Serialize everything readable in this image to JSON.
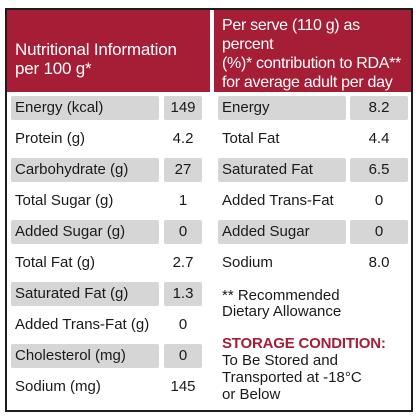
{
  "left_header": {
    "line1": "Nutritional Information",
    "line2": "per 100 g*"
  },
  "right_header": {
    "line1": "Per serve (110 g) as percent",
    "line2": "(%)* contribution to RDA**",
    "line3": "for average adult per day"
  },
  "left_rows": [
    {
      "label": "Energy (kcal)",
      "value": "149"
    },
    {
      "label": "Protein (g)",
      "value": "4.2"
    },
    {
      "label": "Carbohydrate (g)",
      "value": "27"
    },
    {
      "label": "Total Sugar (g)",
      "value": "1"
    },
    {
      "label": "Added Sugar (g)",
      "value": "0"
    },
    {
      "label": "Total Fat (g)",
      "value": "2.7"
    },
    {
      "label": "Saturated Fat (g)",
      "value": "1.3"
    },
    {
      "label": "Added Trans-Fat (g)",
      "value": "0"
    },
    {
      "label": "Cholesterol (mg)",
      "value": "0"
    },
    {
      "label": "Sodium (mg)",
      "value": "145"
    }
  ],
  "right_rows": [
    {
      "label": "Energy",
      "value": "8.2"
    },
    {
      "label": "Total Fat",
      "value": "4.4"
    },
    {
      "label": "Saturated Fat",
      "value": "6.5"
    },
    {
      "label": "Added Trans-Fat",
      "value": "0"
    },
    {
      "label": "Added Sugar",
      "value": "0"
    },
    {
      "label": "Sodium",
      "value": "8.0"
    }
  ],
  "footnote": {
    "line1": "** Recommended",
    "line2": "Dietary Allowance"
  },
  "storage": {
    "title": "STORAGE CONDITION:",
    "line1": "To Be Stored and",
    "line2": "Transported at -18°C",
    "line3": "or Below"
  },
  "colors": {
    "header_bg": "#a51e36",
    "shade": "#d6d6d6",
    "storage_title": "#a51e36"
  }
}
